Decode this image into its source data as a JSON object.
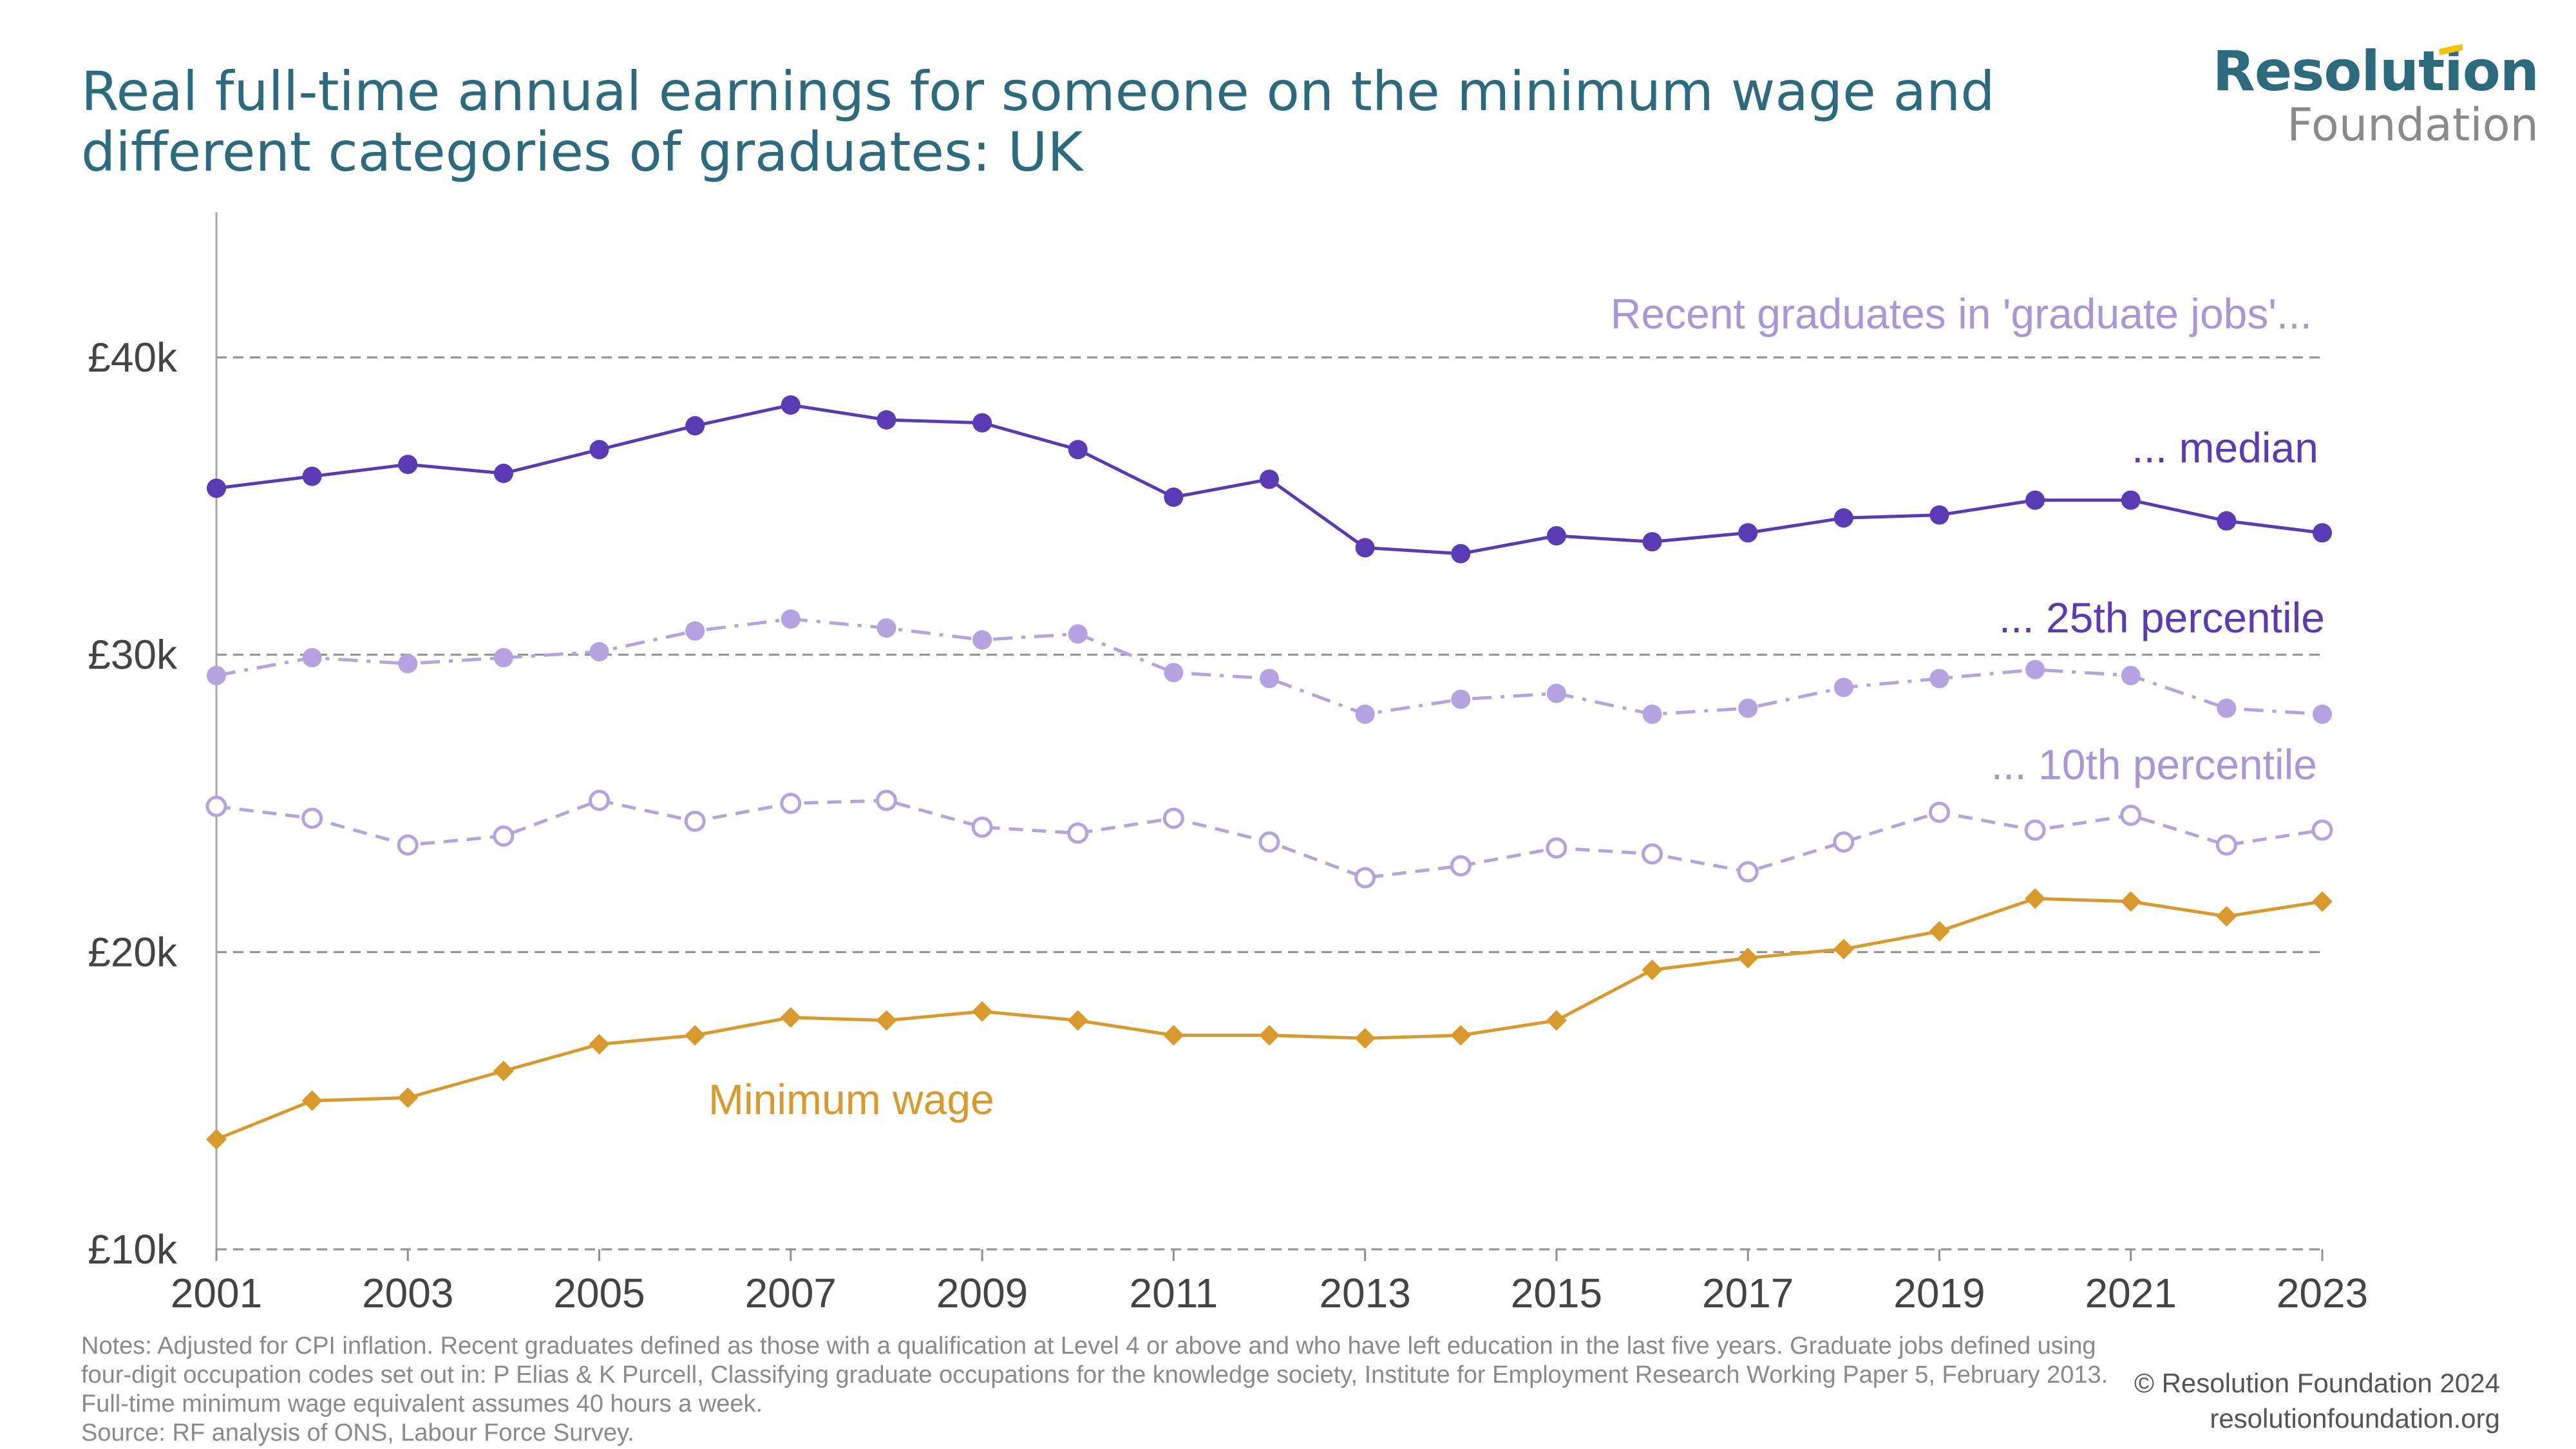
{
  "title": "Real full-time annual earnings for someone on the minimum wage and different categories of graduates: UK",
  "logo": {
    "top": "Resolution",
    "bottom": "Foundation"
  },
  "notes": "Notes: Adjusted for CPI inflation. Recent graduates defined as those with a qualification at Level 4 or above and who have left education in the last five years. Graduate jobs defined using four-digit occupation codes set out in: P Elias & K Purcell, Classifying graduate occupations for the knowledge society, Institute for Employment Research Working Paper 5, February 2013. Full-time minimum wage equivalent assumes 40 hours a week.",
  "source": "Source: RF analysis of ONS, Labour Force Survey.",
  "credit": {
    "copyright": "© Resolution Foundation 2024",
    "url": "resolutionfoundation.org"
  },
  "chart_data": {
    "type": "line",
    "x": [
      2001,
      2002,
      2003,
      2004,
      2005,
      2006,
      2007,
      2008,
      2009,
      2010,
      2011,
      2012,
      2013,
      2014,
      2015,
      2016,
      2017,
      2018,
      2019,
      2020,
      2021,
      2022,
      2023
    ],
    "xticks": [
      2001,
      2003,
      2005,
      2007,
      2009,
      2011,
      2013,
      2015,
      2017,
      2019,
      2021,
      2023
    ],
    "ylim": [
      10000,
      40000
    ],
    "yticks": [
      {
        "value": 10000,
        "label": "£10k"
      },
      {
        "value": 20000,
        "label": "£20k"
      },
      {
        "value": 30000,
        "label": "£30k"
      },
      {
        "value": 40000,
        "label": "£40k"
      }
    ],
    "grid": "horizontal dashed",
    "annotations": [
      {
        "text": "Recent graduates in 'graduate jobs'...",
        "color": "#a996d8"
      }
    ],
    "series": [
      {
        "name": "... median",
        "color": "#5b3ab5",
        "style": "solid",
        "marker": "filled-circle",
        "values": [
          35600,
          36000,
          36400,
          36100,
          36900,
          37700,
          38400,
          37900,
          37800,
          36900,
          35300,
          35900,
          33600,
          33400,
          34000,
          33800,
          34100,
          34600,
          34700,
          35200,
          35200,
          34500,
          34100
        ]
      },
      {
        "name": "... 25th percentile",
        "color": "#b3a3e0",
        "style": "dashdot",
        "marker": "filled-circle",
        "values": [
          29300,
          29900,
          29700,
          29900,
          30100,
          30800,
          31200,
          30900,
          30500,
          30700,
          29400,
          29200,
          28000,
          28500,
          28700,
          28000,
          28200,
          28900,
          29200,
          29500,
          29300,
          28200,
          28000
        ]
      },
      {
        "name": "... 10th percentile",
        "color": "#b3a3e0",
        "style": "dashed",
        "marker": "hollow-circle",
        "values": [
          24900,
          24500,
          23600,
          23900,
          25100,
          24400,
          25000,
          25100,
          24200,
          24000,
          24500,
          23700,
          22500,
          22900,
          23500,
          23300,
          22700,
          23700,
          24700,
          24100,
          24600,
          23600,
          24100
        ]
      },
      {
        "name": "Minimum wage",
        "color": "#d99a2b",
        "style": "solid",
        "marker": "diamond",
        "values": [
          13700,
          15000,
          15100,
          16000,
          16900,
          17200,
          17800,
          17700,
          18000,
          17700,
          17200,
          17200,
          17100,
          17200,
          17700,
          19400,
          19800,
          20100,
          20700,
          21800,
          21700,
          21200,
          21700
        ]
      }
    ]
  }
}
